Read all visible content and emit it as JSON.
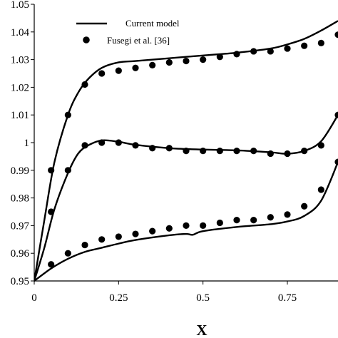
{
  "chart_data": {
    "type": "line",
    "title": "",
    "xlabel": "X",
    "ylabel": "",
    "xlim": [
      0,
      0.9
    ],
    "ylim": [
      0.95,
      1.05
    ],
    "x_ticks": [
      0,
      0.25,
      0.5,
      0.75
    ],
    "x_tick_labels": [
      "0",
      "0.25",
      "0.5",
      "0.75"
    ],
    "y_ticks": [
      0.95,
      0.96,
      0.97,
      0.98,
      0.99,
      1.0,
      1.01,
      1.02,
      1.03,
      1.04,
      1.05
    ],
    "y_tick_labels": [
      "0.95",
      "0.96",
      "0.97",
      "0.98",
      "0.99",
      "1",
      "1.01",
      "1.02",
      "1.03",
      "1.04",
      "1.05"
    ],
    "grid": false,
    "legend": {
      "position": "top-left",
      "entries": [
        "Current model",
        "Fusegi et al. [36]"
      ]
    },
    "series": [
      {
        "name": "Current model",
        "style": "line",
        "curves": [
          {
            "x": [
              0,
              0.03,
              0.06,
              0.1,
              0.13,
              0.16,
              0.2,
              0.25,
              0.3,
              0.4,
              0.5,
              0.6,
              0.7,
              0.75,
              0.8,
              0.85,
              0.9
            ],
            "y": [
              0.95,
              0.972,
              0.993,
              1.01,
              1.018,
              1.023,
              1.027,
              1.029,
              1.0295,
              1.0305,
              1.0315,
              1.0325,
              1.034,
              1.0355,
              1.0375,
              1.0405,
              1.044
            ]
          },
          {
            "x": [
              0,
              0.03,
              0.06,
              0.1,
              0.13,
              0.16,
              0.2,
              0.25,
              0.3,
              0.4,
              0.5,
              0.6,
              0.7,
              0.75,
              0.8,
              0.85,
              0.9
            ],
            "y": [
              0.95,
              0.962,
              0.976,
              0.989,
              0.996,
              0.999,
              1.0008,
              1.0003,
              0.9992,
              0.998,
              0.9975,
              0.9972,
              0.9965,
              0.996,
              0.997,
              1.0005,
              1.01
            ]
          },
          {
            "x": [
              0,
              0.05,
              0.1,
              0.15,
              0.2,
              0.25,
              0.3,
              0.4,
              0.45,
              0.47,
              0.5,
              0.6,
              0.7,
              0.75,
              0.8,
              0.85,
              0.9
            ],
            "y": [
              0.95,
              0.9545,
              0.958,
              0.9605,
              0.962,
              0.9635,
              0.9648,
              0.9665,
              0.967,
              0.9667,
              0.968,
              0.9695,
              0.9705,
              0.9715,
              0.9735,
              0.979,
              0.993
            ]
          }
        ]
      },
      {
        "name": "Fusegi et al. [36]",
        "style": "markers",
        "curves": [
          {
            "x": [
              0.05,
              0.1,
              0.15,
              0.2,
              0.25,
              0.3,
              0.35,
              0.4,
              0.45,
              0.5,
              0.55,
              0.6,
              0.65,
              0.7,
              0.75,
              0.8,
              0.85,
              0.9
            ],
            "y": [
              0.99,
              1.01,
              1.021,
              1.025,
              1.026,
              1.027,
              1.028,
              1.029,
              1.0295,
              1.03,
              1.031,
              1.032,
              1.033,
              1.033,
              1.034,
              1.035,
              1.036,
              1.039
            ]
          },
          {
            "x": [
              0.05,
              0.1,
              0.15,
              0.2,
              0.25,
              0.3,
              0.35,
              0.4,
              0.45,
              0.5,
              0.55,
              0.6,
              0.65,
              0.7,
              0.75,
              0.8,
              0.85,
              0.9
            ],
            "y": [
              0.975,
              0.99,
              0.999,
              1.0,
              1.0,
              0.999,
              0.998,
              0.998,
              0.997,
              0.997,
              0.997,
              0.997,
              0.997,
              0.996,
              0.996,
              0.997,
              0.999,
              1.01
            ]
          },
          {
            "x": [
              0.05,
              0.1,
              0.15,
              0.2,
              0.25,
              0.3,
              0.35,
              0.4,
              0.45,
              0.5,
              0.55,
              0.6,
              0.65,
              0.7,
              0.75,
              0.8,
              0.85,
              0.9
            ],
            "y": [
              0.956,
              0.96,
              0.963,
              0.965,
              0.966,
              0.967,
              0.968,
              0.969,
              0.97,
              0.97,
              0.971,
              0.972,
              0.972,
              0.973,
              0.974,
              0.977,
              0.983,
              0.993
            ]
          }
        ]
      }
    ]
  }
}
